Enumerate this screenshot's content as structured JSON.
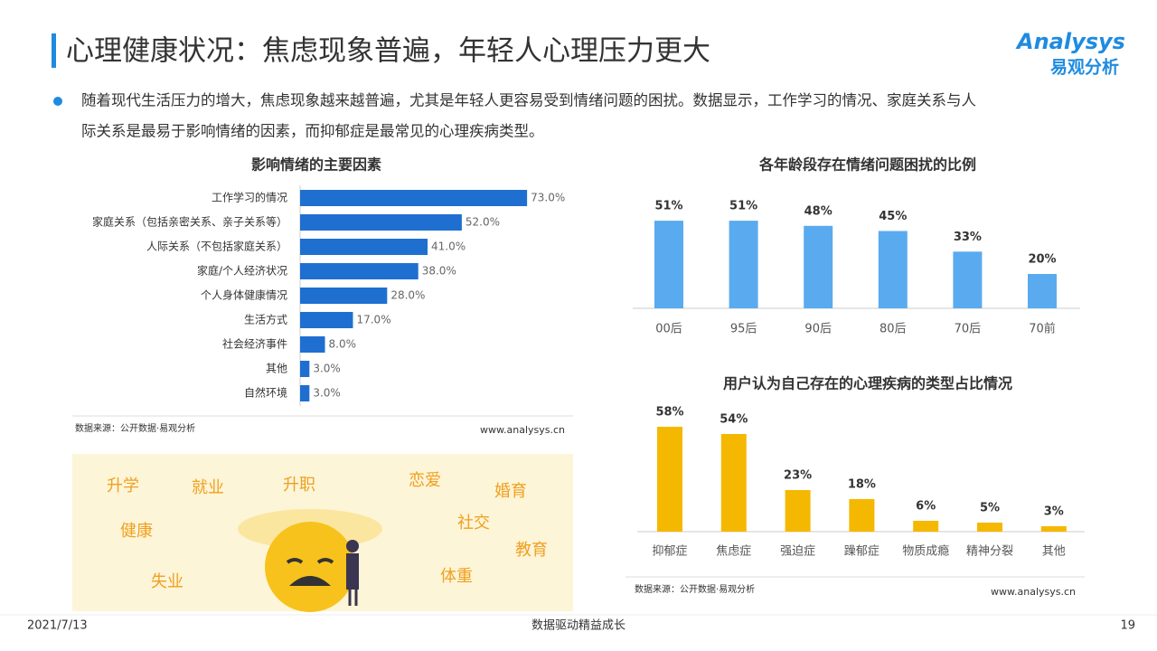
{
  "header": {
    "title": "心理健康状况：焦虑现象普遍，年轻人心理压力更大"
  },
  "logo": {
    "brand": "Analysys",
    "name": "易观分析"
  },
  "bullet": [
    "随着现代生活压力的增大，焦虑现象越来越普遍，尤其是年轻人更容易受到情绪问题的困扰。数据显示，工作学习的情况、家庭关系与人",
    "际关系是最易于影响情绪的因素，而抑郁症是最常见的心理疾病类型。"
  ],
  "chart_data": [
    {
      "type": "bar",
      "orientation": "horizontal",
      "title": "影响情绪的主要因素",
      "color": "#1f6fd1",
      "categories": [
        "工作学习的情况",
        "家庭关系（包括亲密关系、亲子关系等）",
        "人际关系（不包括家庭关系）",
        "家庭/个人经济状况",
        "个人身体健康情况",
        "生活方式",
        "社会经济事件",
        "其他",
        "自然环境"
      ],
      "values": [
        73,
        52,
        41,
        38,
        28,
        17,
        8,
        3,
        3
      ],
      "value_labels": [
        "73.0%",
        "52.0%",
        "41.0%",
        "38.0%",
        "28.0%",
        "17.0%",
        "8.0%",
        "3.0%",
        "3.0%"
      ]
    },
    {
      "type": "bar",
      "orientation": "vertical",
      "title": "各年龄段存在情绪问题困扰的比例",
      "color": "#5aaaf0",
      "categories": [
        "00后",
        "95后",
        "90后",
        "80后",
        "70后",
        "70前"
      ],
      "values": [
        51,
        51,
        48,
        45,
        33,
        20
      ],
      "value_labels": [
        "51%",
        "51%",
        "48%",
        "45%",
        "33%",
        "20%"
      ]
    },
    {
      "type": "bar",
      "orientation": "vertical",
      "title": "用户认为自己存在的心理疾病的类型占比情况",
      "color": "#f5b800",
      "categories": [
        "抑郁症",
        "焦虑症",
        "强迫症",
        "躁郁症",
        "物质成瘾",
        "精神分裂",
        "其他"
      ],
      "values": [
        58,
        54,
        23,
        18,
        6,
        5,
        3
      ],
      "value_labels": [
        "58%",
        "54%",
        "23%",
        "18%",
        "6%",
        "5%",
        "3%"
      ]
    }
  ],
  "sources": [
    {
      "source": "数据来源：公开数据·易观分析",
      "url": "www.analysys.cn"
    },
    {
      "source": "数据来源：公开数据·易观分析",
      "url": "www.analysys.cn"
    }
  ],
  "illustration": {
    "words": [
      "升学",
      "就业",
      "升职",
      "恋爱",
      "婚育",
      "健康",
      "社交",
      "教育",
      "失业",
      "体重"
    ]
  },
  "footer": {
    "date": "2021/7/13",
    "slogan": "数据驱动精益成长",
    "page": 19
  }
}
